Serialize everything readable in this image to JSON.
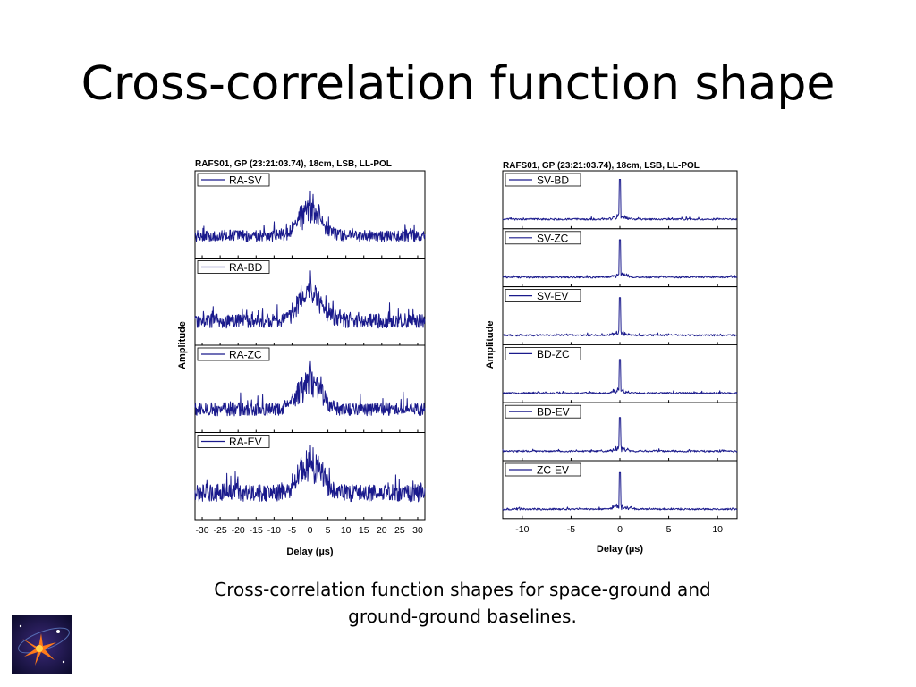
{
  "slide": {
    "title": "Cross-correlation function shape",
    "caption": "Cross-correlation function shapes for space-ground and ground-ground baselines."
  },
  "colors": {
    "trace": "#1a1a8c",
    "background": "#ffffff"
  },
  "logo": {
    "icon": "starburst-logo-icon"
  },
  "chart_data": [
    {
      "type": "line",
      "title": "RAFS01, GP (23:21:03.74), 18cm, LSB, LL-POL",
      "xlabel": "Delay (µs)",
      "ylabel": "Amplitude",
      "xlim": [
        -32,
        32
      ],
      "xticks": [
        -30,
        -25,
        -20,
        -15,
        -10,
        -5,
        0,
        5,
        10,
        15,
        20,
        25,
        30
      ],
      "panels": [
        {
          "name": "RA-SV",
          "peak_delay": 0,
          "peak_amplitude": 0.75,
          "noise_level": 0.18
        },
        {
          "name": "RA-BD",
          "peak_delay": 0,
          "peak_amplitude": 0.85,
          "noise_level": 0.22
        },
        {
          "name": "RA-ZC",
          "peak_delay": 0,
          "peak_amplitude": 0.8,
          "noise_level": 0.2
        },
        {
          "name": "RA-EV",
          "peak_delay": 0,
          "peak_amplitude": 0.85,
          "noise_level": 0.26
        }
      ]
    },
    {
      "type": "line",
      "title": "RAFS01, GP (23:21:03.74), 18cm, LSB, LL-POL",
      "xlabel": "Delay (µs)",
      "ylabel": "Amplitude",
      "xlim": [
        -12,
        12
      ],
      "xticks": [
        -10,
        -5,
        0,
        5,
        10
      ],
      "panels": [
        {
          "name": "SV-BD",
          "peak_delay": 0,
          "peak_amplitude": 0.85,
          "noise_level": 0.04
        },
        {
          "name": "SV-ZC",
          "peak_delay": 0,
          "peak_amplitude": 0.8,
          "noise_level": 0.04
        },
        {
          "name": "SV-EV",
          "peak_delay": 0,
          "peak_amplitude": 0.8,
          "noise_level": 0.04
        },
        {
          "name": "BD-ZC",
          "peak_delay": 0,
          "peak_amplitude": 0.72,
          "noise_level": 0.04
        },
        {
          "name": "BD-EV",
          "peak_delay": 0,
          "peak_amplitude": 0.72,
          "noise_level": 0.04
        },
        {
          "name": "ZC-EV",
          "peak_delay": 0,
          "peak_amplitude": 0.78,
          "noise_level": 0.04
        }
      ]
    }
  ]
}
